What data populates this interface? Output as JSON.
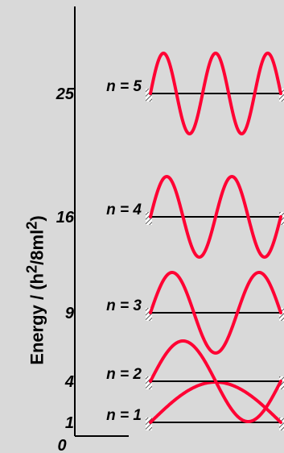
{
  "figure": {
    "axis_label": {
      "prefix": "Energy / (h",
      "sup1": "2",
      "mid": "/8ml",
      "sup2": "2",
      "suffix": ")"
    },
    "zero_label": "0",
    "levels": [
      {
        "n": 1,
        "energy_label": "1",
        "state_label": "n = 1"
      },
      {
        "n": 2,
        "energy_label": "4",
        "state_label": "n = 2"
      },
      {
        "n": 3,
        "energy_label": "9",
        "state_label": "n = 3"
      },
      {
        "n": 4,
        "energy_label": "16",
        "state_label": "n = 4"
      },
      {
        "n": 5,
        "energy_label": "25",
        "state_label": "n = 5"
      }
    ],
    "colors": {
      "background": "#d9d9d9",
      "wave": "#ff0033",
      "line": "#000000",
      "wall": "#b0b0b0"
    }
  }
}
